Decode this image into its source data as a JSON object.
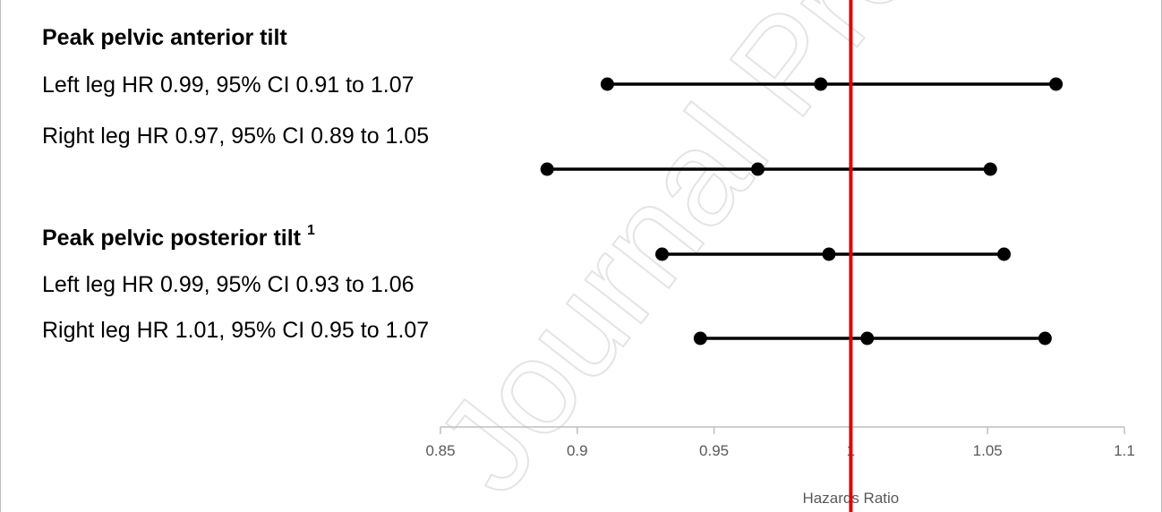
{
  "watermark": "Journal Pre-proof",
  "labels": {
    "heading1": "Peak pelvic anterior tilt",
    "row1": "Left leg HR 0.99, 95% CI 0.91 to 1.07",
    "row2": "Right leg HR 0.97, 95% CI 0.89 to 1.05",
    "heading2": "Peak pelvic posterior tilt",
    "heading2_sup": "1",
    "row3": "Left leg HR 0.99, 95% CI 0.93 to 1.06",
    "row4": "Right leg HR 1.01, 95% CI 0.95 to 1.07"
  },
  "colors": {
    "reference_line": "#e00000",
    "marker": "#000000",
    "axis": "#bfbfbf",
    "text_muted": "#595959"
  },
  "chart_data": {
    "type": "scatter",
    "title": "",
    "xlabel": "Hazards Ratio",
    "ylabel": "",
    "xlim": [
      0.85,
      1.1
    ],
    "xticks": [
      "0.85",
      "0.9",
      "0.95",
      "1",
      "1.05",
      "1.1"
    ],
    "reference_line": 1,
    "grid": false,
    "series": [
      {
        "label": "Left leg HR 0.99, 95% CI 0.91 to 1.07",
        "lower": 0.911,
        "estimate": 0.989,
        "upper": 1.075
      },
      {
        "label": "Right leg HR 0.97, 95% CI 0.89 to 1.05",
        "lower": 0.889,
        "estimate": 0.966,
        "upper": 1.051
      },
      {
        "label": "Left leg HR 0.99, 95% CI 0.93 to 1.06",
        "lower": 0.931,
        "estimate": 0.992,
        "upper": 1.056
      },
      {
        "label": "Right leg HR 1.01, 95% CI 0.95 to 1.07",
        "lower": 0.945,
        "estimate": 1.006,
        "upper": 1.071
      }
    ]
  }
}
